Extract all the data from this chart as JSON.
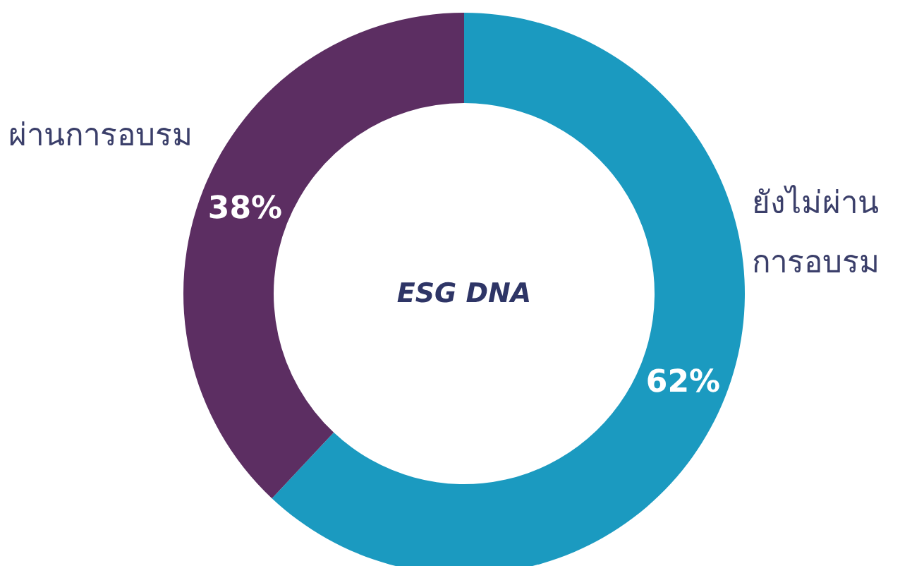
{
  "chart_data": {
    "type": "donut",
    "title": "ESG DNA",
    "categories": [
      "ยังไม่ผ่านการอบรม",
      "ผ่านการอบรม"
    ],
    "values": [
      62,
      38
    ],
    "colors": [
      "#1b9ac0",
      "#5c2e62"
    ],
    "value_labels": [
      "62%",
      "38%"
    ]
  }
}
